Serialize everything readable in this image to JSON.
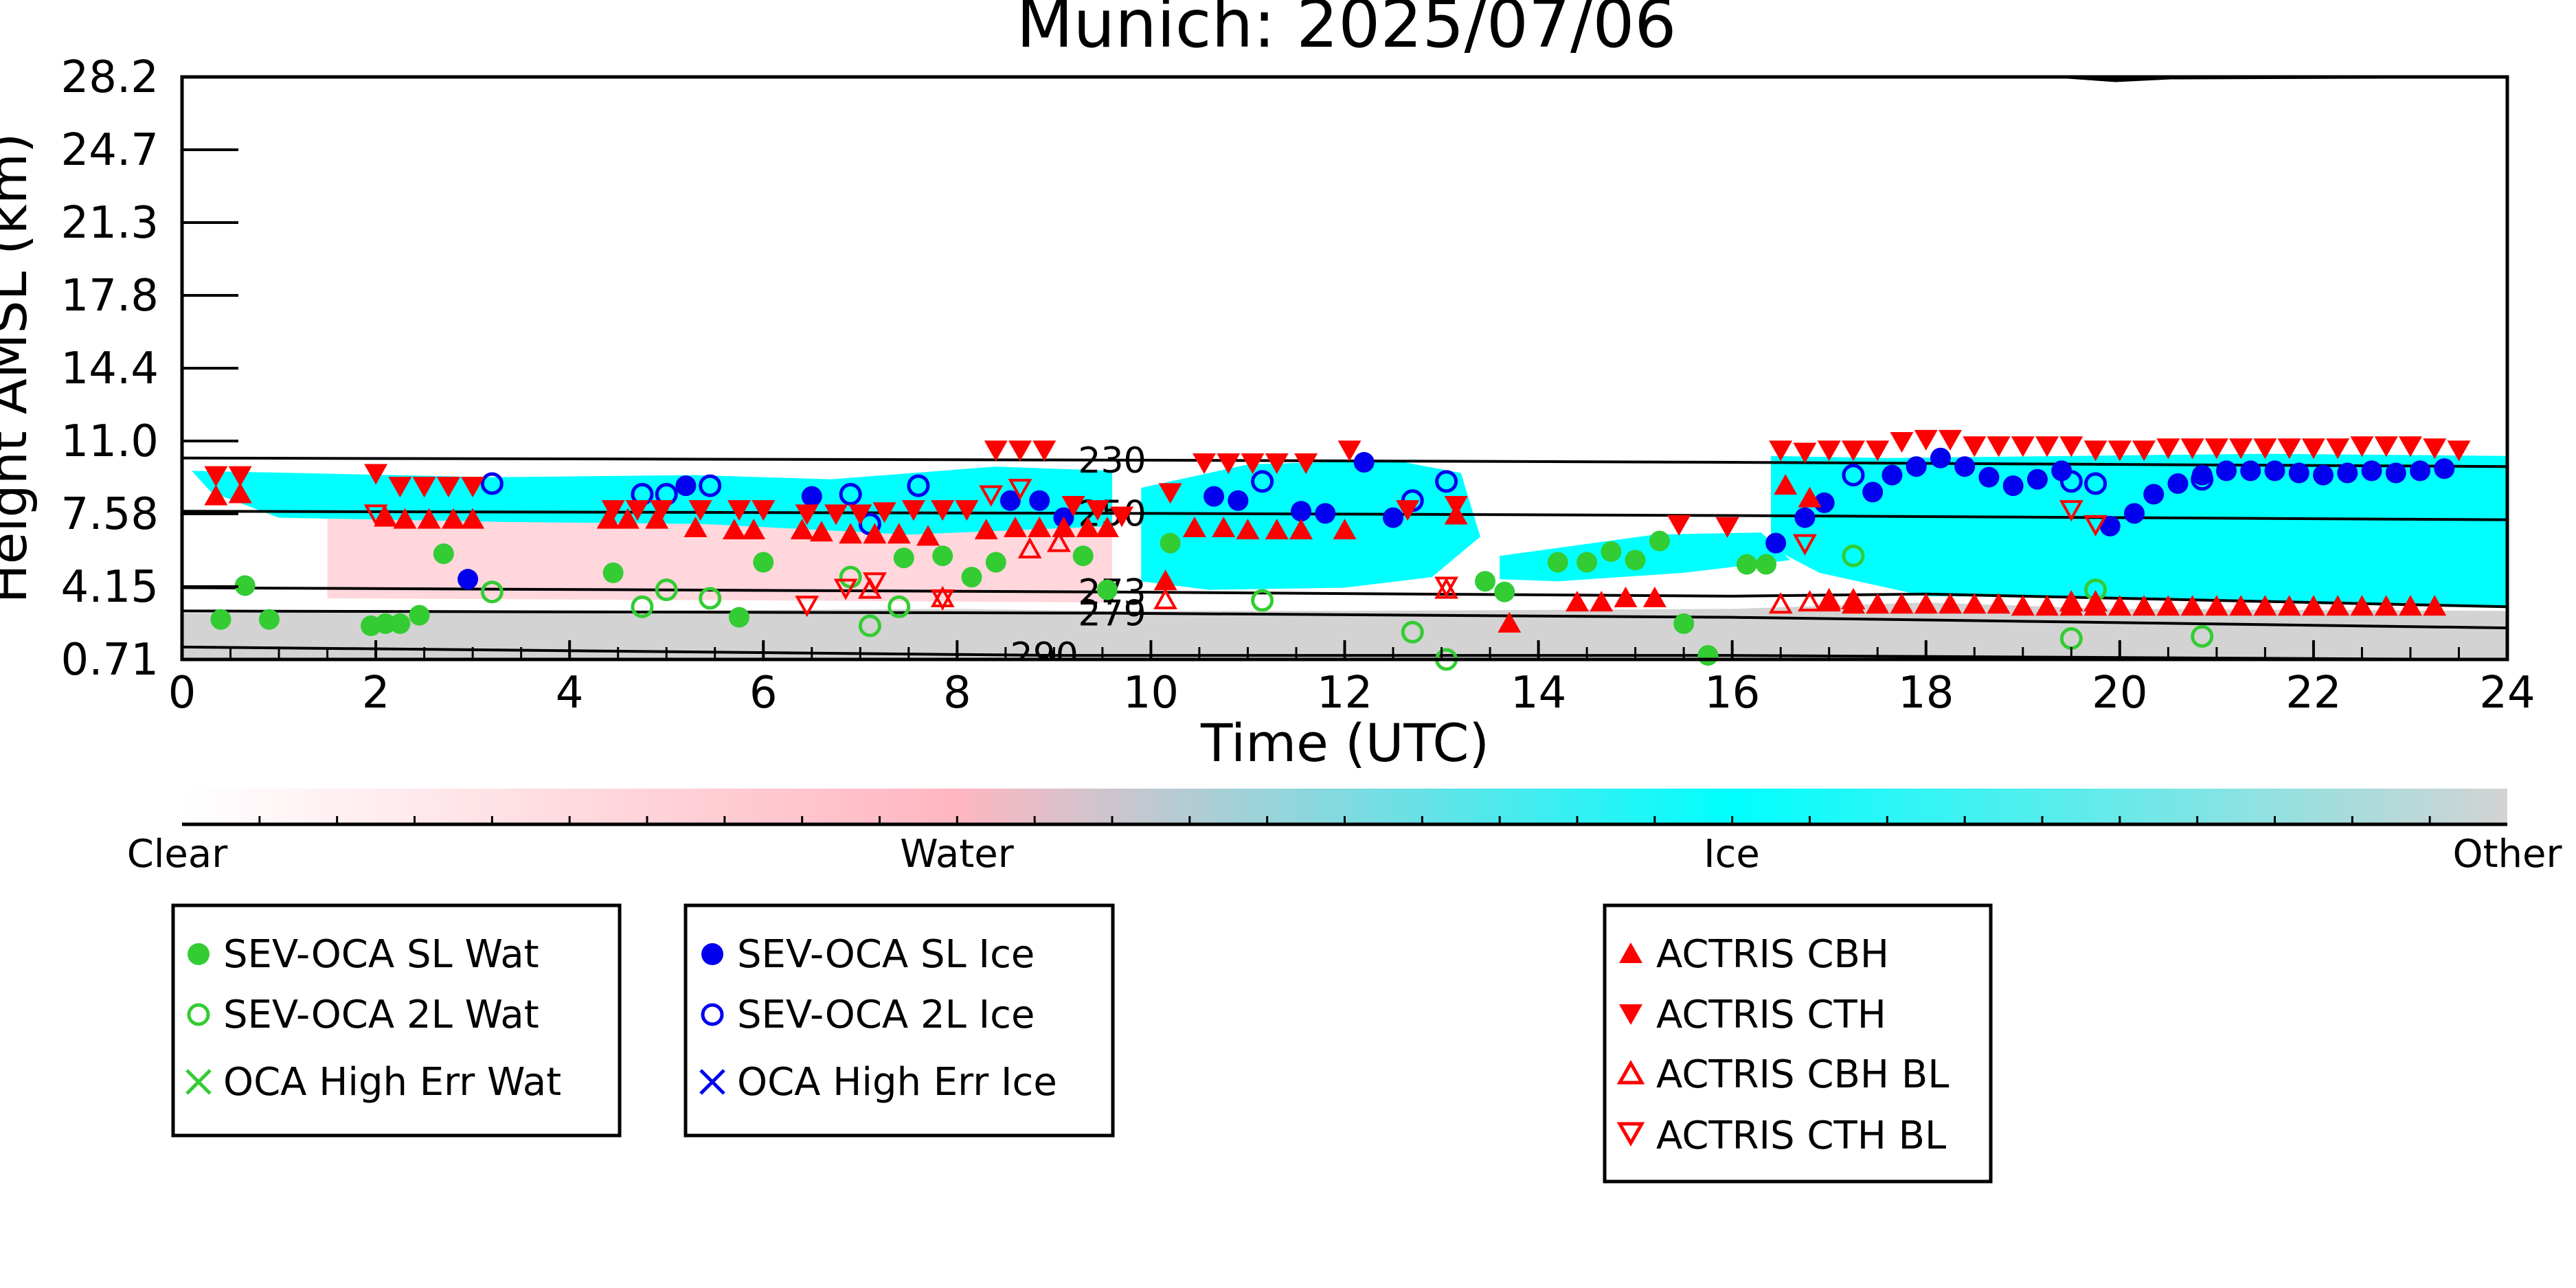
{
  "chart_data": {
    "type": "scatter",
    "title": "Munich: 2025/07/06",
    "xlabel": "Time (UTC)",
    "ylabel": "Height AMSL (km)",
    "xlim": [
      0,
      24
    ],
    "ylim": [
      0.71,
      28.2
    ],
    "xticks": [
      "0",
      "2",
      "4",
      "6",
      "8",
      "10",
      "12",
      "14",
      "16",
      "18",
      "20",
      "22",
      "24"
    ],
    "yticks": [
      "0.71",
      "4.15",
      "7.58",
      "11.0",
      "14.4",
      "17.8",
      "21.3",
      "24.7",
      "28.2"
    ],
    "ytick_values": [
      0.71,
      4.15,
      7.58,
      11.0,
      14.4,
      17.8,
      21.3,
      24.7,
      28.2
    ],
    "grid": false,
    "background": "cloud phase classification (clear / water / ice / other)",
    "colorbar": {
      "labels": [
        "Clear",
        "Water",
        "Ice",
        "Other"
      ],
      "colors": [
        "#ffffff",
        "#ffb6c1",
        "#00ffff",
        "#d3d3d3"
      ]
    },
    "isotherms": [
      {
        "label": "230",
        "points": [
          [
            0,
            10.2
          ],
          [
            10,
            10.1
          ],
          [
            16,
            10.0
          ],
          [
            24,
            9.8
          ]
        ]
      },
      {
        "label": "250",
        "points": [
          [
            0,
            7.7
          ],
          [
            10,
            7.6
          ],
          [
            16,
            7.5
          ],
          [
            24,
            7.3
          ]
        ]
      },
      {
        "label": "273",
        "points": [
          [
            0,
            4.1
          ],
          [
            9.5,
            3.9
          ],
          [
            16,
            3.7
          ],
          [
            18,
            3.8
          ],
          [
            24,
            3.2
          ]
        ]
      },
      {
        "label": "279",
        "points": [
          [
            0,
            3.0
          ],
          [
            9.5,
            2.9
          ],
          [
            16,
            2.7
          ],
          [
            24,
            2.2
          ]
        ]
      },
      {
        "label": "290",
        "points": [
          [
            0,
            1.3
          ],
          [
            9,
            0.9
          ],
          [
            16,
            0.9
          ],
          [
            24,
            0.7
          ]
        ]
      }
    ],
    "series": [
      {
        "name": "SEV-OCA SL Wat",
        "marker": "filled-circle",
        "color": "#33cc33",
        "x": [
          0.4,
          0.65,
          0.9,
          1.95,
          2.1,
          2.25,
          2.45,
          2.7,
          4.45,
          5.75,
          6.0,
          7.45,
          7.85,
          8.15,
          8.4,
          9.3,
          9.55,
          10.2,
          13.45,
          13.65,
          14.2,
          14.5,
          14.75,
          15.0,
          15.25,
          15.5,
          15.75,
          16.15,
          16.35
        ],
        "y": [
          2.6,
          4.2,
          2.6,
          2.3,
          2.4,
          2.4,
          2.8,
          5.7,
          4.8,
          2.7,
          5.3,
          5.5,
          5.6,
          4.6,
          5.3,
          5.6,
          4.0,
          6.2,
          4.4,
          3.9,
          5.3,
          5.3,
          5.8,
          5.4,
          6.3,
          2.4,
          0.9,
          5.2,
          5.2
        ]
      },
      {
        "name": "SEV-OCA 2L Wat",
        "marker": "open-circle",
        "color": "#33cc33",
        "x": [
          3.2,
          4.75,
          5.0,
          5.45,
          6.9,
          7.1,
          7.4,
          11.15,
          12.7,
          13.05,
          17.25,
          19.5,
          19.75,
          20.85
        ],
        "y": [
          3.9,
          3.2,
          4.0,
          3.6,
          4.6,
          2.3,
          3.2,
          3.5,
          2.0,
          0.71,
          5.6,
          1.7,
          4.0,
          1.8
        ]
      },
      {
        "name": "OCA High Err Wat",
        "marker": "x",
        "color": "#33cc33",
        "x": [],
        "y": []
      },
      {
        "name": "SEV-OCA SL Ice",
        "marker": "filled-circle",
        "color": "#0000ee",
        "x": [
          2.95,
          5.2,
          6.5,
          8.55,
          8.85,
          9.1,
          10.65,
          10.9,
          11.55,
          11.8,
          12.2,
          12.5,
          16.45,
          16.75,
          16.95,
          17.45,
          17.65,
          17.9,
          18.15,
          18.4,
          18.65,
          18.9,
          19.15,
          19.4,
          19.9,
          20.15,
          20.35,
          20.6,
          20.85,
          21.1,
          21.35,
          21.6,
          21.85,
          22.1,
          22.35,
          22.6,
          22.85,
          23.1,
          23.35
        ],
        "y": [
          4.5,
          8.9,
          8.4,
          8.2,
          8.2,
          7.4,
          8.4,
          8.2,
          7.7,
          7.6,
          10.0,
          7.4,
          6.2,
          7.4,
          8.1,
          8.6,
          9.4,
          9.8,
          10.2,
          9.8,
          9.3,
          8.9,
          9.2,
          9.6,
          7.0,
          7.6,
          8.5,
          9.0,
          9.4,
          9.6,
          9.6,
          9.6,
          9.5,
          9.4,
          9.5,
          9.6,
          9.5,
          9.6,
          9.7
        ]
      },
      {
        "name": "SEV-OCA 2L Ice",
        "marker": "open-circle",
        "color": "#0000ee",
        "x": [
          3.2,
          4.75,
          5.0,
          5.45,
          6.9,
          7.1,
          7.6,
          11.15,
          12.7,
          13.05,
          17.25,
          19.5,
          19.75,
          20.85
        ],
        "y": [
          9.0,
          8.5,
          8.5,
          8.9,
          8.5,
          7.1,
          8.9,
          9.1,
          8.2,
          9.1,
          9.4,
          9.1,
          9.0,
          9.2
        ]
      },
      {
        "name": "OCA High Err Ice",
        "marker": "x",
        "color": "#0000ee",
        "x": [],
        "y": []
      },
      {
        "name": "ACTRIS CBH",
        "marker": "filled-triangle-up",
        "color": "#ff0000",
        "x": [
          0.35,
          0.6,
          2.1,
          2.3,
          2.55,
          2.8,
          3.0,
          4.4,
          4.6,
          4.9,
          5.3,
          5.7,
          5.9,
          6.4,
          6.6,
          6.9,
          7.15,
          7.4,
          7.7,
          8.3,
          8.6,
          8.85,
          9.1,
          9.35,
          9.55,
          10.15,
          10.45,
          10.75,
          11.0,
          11.3,
          11.55,
          12.0,
          13.15,
          13.7,
          14.4,
          14.65,
          14.9,
          15.2,
          16.55,
          16.8,
          17.0,
          17.25,
          17.5,
          17.75,
          18.0,
          18.25,
          18.5,
          18.75,
          19.0,
          19.25,
          19.5,
          19.75,
          20.0,
          20.25,
          20.5,
          20.75,
          21.0,
          21.25,
          21.5,
          21.75,
          22.0,
          22.25,
          22.5,
          22.75,
          23.0,
          23.25
        ],
        "y": [
          8.4,
          8.5,
          7.4,
          7.3,
          7.3,
          7.3,
          7.3,
          7.3,
          7.3,
          7.3,
          6.9,
          6.8,
          6.8,
          6.8,
          6.7,
          6.6,
          6.6,
          6.6,
          6.5,
          6.8,
          6.9,
          6.9,
          6.9,
          6.9,
          6.9,
          4.4,
          6.9,
          6.9,
          6.8,
          6.8,
          6.8,
          6.8,
          7.5,
          2.4,
          3.4,
          3.4,
          3.6,
          3.6,
          8.9,
          8.3,
          3.4,
          3.3,
          3.3,
          3.3,
          3.3,
          3.3,
          3.3,
          3.3,
          3.2,
          3.2,
          3.2,
          3.2,
          3.2,
          3.2,
          3.2,
          3.2,
          3.2,
          3.2,
          3.2,
          3.2,
          3.2,
          3.2,
          3.2,
          3.2,
          3.2,
          3.2
        ]
      },
      {
        "name": "ACTRIS CTH",
        "marker": "filled-triangle-down",
        "color": "#ff0000",
        "x": [
          0.35,
          0.6,
          2.0,
          2.25,
          2.5,
          2.75,
          3.0,
          4.45,
          4.7,
          4.95,
          5.35,
          5.75,
          6.0,
          6.45,
          6.75,
          7.0,
          7.25,
          7.55,
          7.85,
          8.1,
          8.4,
          8.65,
          8.9,
          9.2,
          9.45,
          9.7,
          10.2,
          10.55,
          10.8,
          11.05,
          11.3,
          11.6,
          12.05,
          12.65,
          13.15,
          15.45,
          15.95,
          16.5,
          16.75,
          17.0,
          17.25,
          17.5,
          17.75,
          18.0,
          18.25,
          18.5,
          18.75,
          19.0,
          19.25,
          19.5,
          19.75,
          20.0,
          20.25,
          20.5,
          20.75,
          21.0,
          21.25,
          21.5,
          21.75,
          22.0,
          22.25,
          22.5,
          22.75,
          23.0,
          23.25,
          23.5
        ],
        "y": [
          9.4,
          9.4,
          9.5,
          8.9,
          8.9,
          8.9,
          8.9,
          7.8,
          7.8,
          7.8,
          7.8,
          7.8,
          7.8,
          7.6,
          7.6,
          7.6,
          7.7,
          7.8,
          7.8,
          7.8,
          10.6,
          10.6,
          10.6,
          8.0,
          7.8,
          7.5,
          8.6,
          10.0,
          10.0,
          10.0,
          10.0,
          10.0,
          10.6,
          7.8,
          8.0,
          7.1,
          7.0,
          10.6,
          10.5,
          10.6,
          10.6,
          10.6,
          11.0,
          11.1,
          11.1,
          10.8,
          10.8,
          10.8,
          10.8,
          10.8,
          10.6,
          10.6,
          10.6,
          10.7,
          10.7,
          10.7,
          10.7,
          10.7,
          10.7,
          10.7,
          10.7,
          10.8,
          10.8,
          10.8,
          10.7,
          10.6
        ]
      },
      {
        "name": "ACTRIS CBH BL",
        "marker": "open-triangle-up",
        "color": "#ff0000",
        "x": [
          7.1,
          7.85,
          8.75,
          9.05,
          10.15,
          13.05,
          16.5,
          16.8,
          17.0,
          17.25,
          19.5,
          19.75
        ],
        "y": [
          4.0,
          3.6,
          5.9,
          6.2,
          3.5,
          4.0,
          3.3,
          3.4,
          3.5,
          3.5,
          3.4,
          3.4
        ]
      },
      {
        "name": "ACTRIS CTH BL",
        "marker": "open-triangle-down",
        "color": "#ff0000",
        "x": [
          2.0,
          6.45,
          6.85,
          7.15,
          7.85,
          8.35,
          8.65,
          13.05,
          16.75,
          19.5,
          19.75
        ],
        "y": [
          7.6,
          3.3,
          4.1,
          4.4,
          3.6,
          8.5,
          8.8,
          4.2,
          6.2,
          7.8,
          7.1
        ]
      }
    ],
    "legend": {
      "placement": "below plot",
      "boxes": [
        {
          "items": [
            "SEV-OCA SL Wat",
            "SEV-OCA 2L Wat",
            "OCA High Err Wat"
          ]
        },
        {
          "items": [
            "SEV-OCA SL Ice",
            "SEV-OCA 2L Ice",
            "OCA High Err Ice"
          ]
        },
        {
          "items": [
            "ACTRIS CBH",
            "ACTRIS CTH",
            "ACTRIS CBH BL",
            "ACTRIS CTH BL"
          ]
        }
      ]
    }
  }
}
